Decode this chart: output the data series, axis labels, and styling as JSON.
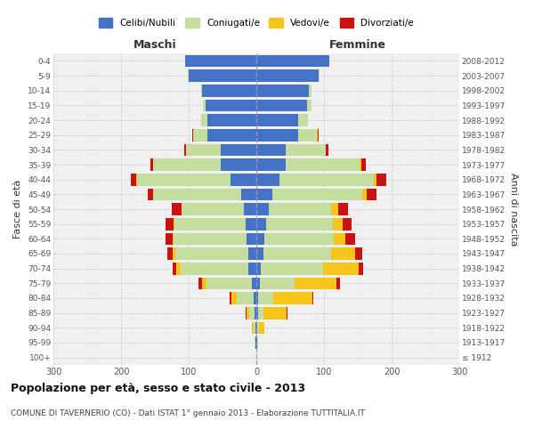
{
  "age_groups": [
    "100+",
    "95-99",
    "90-94",
    "85-89",
    "80-84",
    "75-79",
    "70-74",
    "65-69",
    "60-64",
    "55-59",
    "50-54",
    "45-49",
    "40-44",
    "35-39",
    "30-34",
    "25-29",
    "20-24",
    "15-19",
    "10-14",
    "5-9",
    "0-4"
  ],
  "birth_years": [
    "≤ 1912",
    "1913-1917",
    "1918-1922",
    "1923-1927",
    "1928-1932",
    "1933-1937",
    "1938-1942",
    "1943-1947",
    "1948-1952",
    "1953-1957",
    "1958-1962",
    "1963-1967",
    "1968-1972",
    "1973-1977",
    "1978-1982",
    "1983-1987",
    "1988-1992",
    "1993-1997",
    "1998-2002",
    "2003-2007",
    "2008-2012"
  ],
  "maschi": {
    "celibi": [
      0,
      1,
      1,
      3,
      4,
      6,
      12,
      12,
      14,
      16,
      18,
      22,
      38,
      52,
      52,
      72,
      72,
      75,
      80,
      100,
      105
    ],
    "coniugati": [
      0,
      1,
      3,
      8,
      25,
      68,
      100,
      108,
      108,
      105,
      92,
      130,
      138,
      100,
      52,
      22,
      10,
      4,
      2,
      1,
      0
    ],
    "vedovi": [
      0,
      0,
      2,
      4,
      8,
      6,
      7,
      4,
      2,
      1,
      1,
      1,
      1,
      0,
      0,
      0,
      0,
      0,
      0,
      0,
      0
    ],
    "divorziati": [
      0,
      0,
      0,
      1,
      2,
      5,
      5,
      8,
      10,
      12,
      14,
      8,
      8,
      5,
      3,
      1,
      0,
      0,
      0,
      0,
      0
    ]
  },
  "femmine": {
    "nubili": [
      0,
      1,
      1,
      2,
      3,
      5,
      7,
      10,
      12,
      15,
      18,
      24,
      34,
      44,
      44,
      62,
      62,
      75,
      78,
      92,
      108
    ],
    "coniugate": [
      0,
      1,
      3,
      8,
      22,
      52,
      92,
      100,
      102,
      98,
      92,
      132,
      140,
      108,
      58,
      28,
      14,
      6,
      3,
      1,
      0
    ],
    "vedove": [
      0,
      1,
      8,
      35,
      58,
      62,
      52,
      36,
      18,
      14,
      11,
      7,
      4,
      3,
      1,
      1,
      0,
      0,
      0,
      0,
      0
    ],
    "divorziate": [
      0,
      0,
      0,
      1,
      1,
      5,
      7,
      10,
      14,
      14,
      14,
      14,
      14,
      7,
      3,
      1,
      0,
      0,
      0,
      0,
      0
    ]
  },
  "colors": {
    "celibi_nubili": "#4472c4",
    "coniugati": "#c5dea0",
    "vedovi": "#f5c518",
    "divorziati": "#cc1111"
  },
  "xlim": 300,
  "title": "Popolazione per età, sesso e stato civile - 2013",
  "subtitle": "COMUNE DI TAVERNERIO (CO) - Dati ISTAT 1° gennaio 2013 - Elaborazione TUTTITALIA.IT",
  "ylabel_left": "Fasce di età",
  "ylabel_right": "Anni di nascita",
  "xlabel_left": "Maschi",
  "xlabel_right": "Femmine",
  "bg_color": "#f0f0f0",
  "grid_color": "#cccccc"
}
